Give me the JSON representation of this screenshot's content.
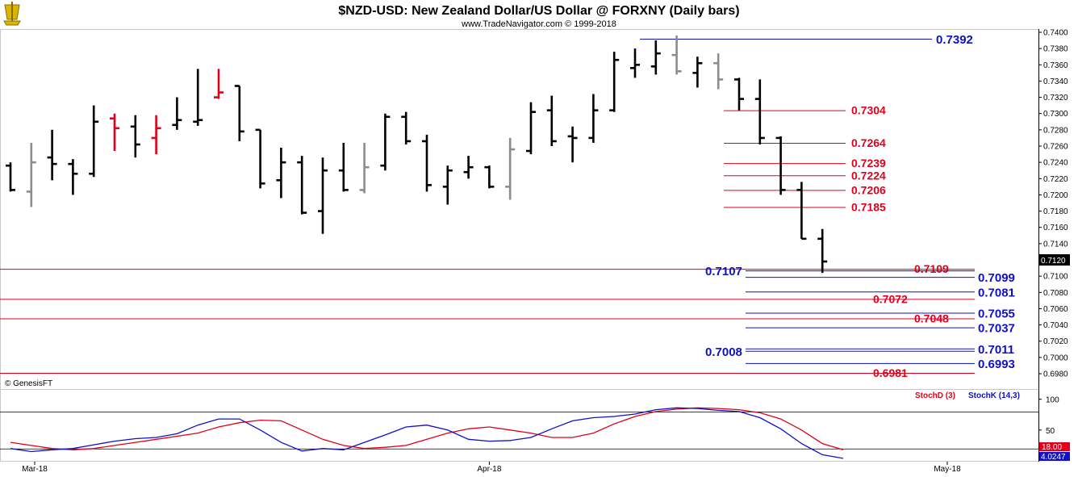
{
  "header": {
    "title": "$NZD-USD:  New Zealand Dollar/US Dollar @ FORXNY  (Daily bars)",
    "subtitle": "www.TradeNavigator.com © 1999-2018",
    "logo": "trade-navigator-ship-logo"
  },
  "colors": {
    "red": "#e0001b",
    "blue": "#1010c8",
    "gray": "#8c8c8c",
    "black": "#000000"
  },
  "chart_data": [
    {
      "type": "ohlc",
      "ylim": [
        0.6965,
        0.7405
      ],
      "y_ticks": [
        "0.7400",
        "0.7380",
        "0.7360",
        "0.7340",
        "0.7320",
        "0.7300",
        "0.7280",
        "0.7260",
        "0.7240",
        "0.7220",
        "0.7200",
        "0.7180",
        "0.7160",
        "0.7140",
        "0.7120",
        "0.7100",
        "0.7080",
        "0.7060",
        "0.7040",
        "0.7020",
        "0.7000",
        "0.6980"
      ],
      "last_price": "0.7120",
      "x_labels": [
        {
          "label": "Mar-18",
          "index": 0
        },
        {
          "label": "Apr-18",
          "index": 23
        },
        {
          "label": "May-18",
          "index": 45
        }
      ],
      "credit": "© GenesisFT",
      "bars": [
        {
          "o": 0.7236,
          "h": 0.724,
          "l": 0.7204,
          "c": 0.7206,
          "color": "black"
        },
        {
          "o": 0.7204,
          "h": 0.7264,
          "l": 0.7185,
          "c": 0.724,
          "color": "gray"
        },
        {
          "o": 0.7246,
          "h": 0.728,
          "l": 0.7218,
          "c": 0.7238,
          "color": "black"
        },
        {
          "o": 0.7238,
          "h": 0.7244,
          "l": 0.72,
          "c": 0.7226,
          "color": "black"
        },
        {
          "o": 0.7226,
          "h": 0.731,
          "l": 0.7222,
          "c": 0.729,
          "color": "black"
        },
        {
          "o": 0.7294,
          "h": 0.73,
          "l": 0.7254,
          "c": 0.7282,
          "color": "red"
        },
        {
          "o": 0.7284,
          "h": 0.7298,
          "l": 0.7246,
          "c": 0.7262,
          "color": "black"
        },
        {
          "o": 0.727,
          "h": 0.7298,
          "l": 0.725,
          "c": 0.7282,
          "color": "red"
        },
        {
          "o": 0.7286,
          "h": 0.732,
          "l": 0.728,
          "c": 0.7292,
          "color": "black"
        },
        {
          "o": 0.729,
          "h": 0.7355,
          "l": 0.7285,
          "c": 0.7292,
          "color": "black"
        },
        {
          "o": 0.732,
          "h": 0.7355,
          "l": 0.7318,
          "c": 0.7326,
          "color": "red"
        },
        {
          "o": 0.7334,
          "h": 0.7334,
          "l": 0.7266,
          "c": 0.7278,
          "color": "black"
        },
        {
          "o": 0.728,
          "h": 0.728,
          "l": 0.7208,
          "c": 0.7214,
          "color": "black"
        },
        {
          "o": 0.7218,
          "h": 0.7258,
          "l": 0.7196,
          "c": 0.724,
          "color": "black"
        },
        {
          "o": 0.724,
          "h": 0.7248,
          "l": 0.7176,
          "c": 0.7178,
          "color": "black"
        },
        {
          "o": 0.718,
          "h": 0.7246,
          "l": 0.7152,
          "c": 0.723,
          "color": "black"
        },
        {
          "o": 0.723,
          "h": 0.7264,
          "l": 0.7204,
          "c": 0.7206,
          "color": "black"
        },
        {
          "o": 0.7206,
          "h": 0.7264,
          "l": 0.7202,
          "c": 0.7234,
          "color": "gray"
        },
        {
          "o": 0.7236,
          "h": 0.73,
          "l": 0.723,
          "c": 0.7296,
          "color": "black"
        },
        {
          "o": 0.7296,
          "h": 0.7302,
          "l": 0.7262,
          "c": 0.7266,
          "color": "black"
        },
        {
          "o": 0.7266,
          "h": 0.7274,
          "l": 0.7204,
          "c": 0.7212,
          "color": "black"
        },
        {
          "o": 0.721,
          "h": 0.7236,
          "l": 0.7188,
          "c": 0.723,
          "color": "black"
        },
        {
          "o": 0.7228,
          "h": 0.7248,
          "l": 0.722,
          "c": 0.7234,
          "color": "black"
        },
        {
          "o": 0.7234,
          "h": 0.7236,
          "l": 0.7208,
          "c": 0.721,
          "color": "black"
        },
        {
          "o": 0.721,
          "h": 0.727,
          "l": 0.7194,
          "c": 0.7256,
          "color": "gray"
        },
        {
          "o": 0.7254,
          "h": 0.7314,
          "l": 0.725,
          "c": 0.7302,
          "color": "black"
        },
        {
          "o": 0.7304,
          "h": 0.7322,
          "l": 0.726,
          "c": 0.7266,
          "color": "black"
        },
        {
          "o": 0.7272,
          "h": 0.7284,
          "l": 0.724,
          "c": 0.727,
          "color": "black"
        },
        {
          "o": 0.727,
          "h": 0.7324,
          "l": 0.7264,
          "c": 0.7304,
          "color": "black"
        },
        {
          "o": 0.7304,
          "h": 0.7376,
          "l": 0.7302,
          "c": 0.7366,
          "color": "black"
        },
        {
          "o": 0.7356,
          "h": 0.738,
          "l": 0.7344,
          "c": 0.736,
          "color": "black"
        },
        {
          "o": 0.7358,
          "h": 0.739,
          "l": 0.7348,
          "c": 0.7374,
          "color": "black"
        },
        {
          "o": 0.7372,
          "h": 0.7396,
          "l": 0.7348,
          "c": 0.7352,
          "color": "gray"
        },
        {
          "o": 0.735,
          "h": 0.737,
          "l": 0.7332,
          "c": 0.7362,
          "color": "black"
        },
        {
          "o": 0.7362,
          "h": 0.7374,
          "l": 0.733,
          "c": 0.7342,
          "color": "gray"
        },
        {
          "o": 0.7342,
          "h": 0.7344,
          "l": 0.7304,
          "c": 0.7318,
          "color": "black"
        },
        {
          "o": 0.7318,
          "h": 0.7342,
          "l": 0.7262,
          "c": 0.727,
          "color": "black"
        },
        {
          "o": 0.727,
          "h": 0.7272,
          "l": 0.72,
          "c": 0.7206,
          "color": "black"
        },
        {
          "o": 0.7206,
          "h": 0.7216,
          "l": 0.7146,
          "c": 0.7146,
          "color": "black"
        },
        {
          "o": 0.7146,
          "h": 0.7158,
          "l": 0.7104,
          "c": 0.7118,
          "color": "black"
        }
      ],
      "red_levels": [
        {
          "value": 0.7304,
          "label": "0.7304",
          "style": "short"
        },
        {
          "value": 0.7264,
          "label": "0.7264",
          "style": "short"
        },
        {
          "value": 0.7239,
          "label": "0.7239",
          "style": "short"
        },
        {
          "value": 0.7224,
          "label": "0.7224",
          "style": "short"
        },
        {
          "value": 0.7206,
          "label": "0.7206",
          "style": "short"
        },
        {
          "value": 0.7185,
          "label": "0.7185",
          "style": "short"
        },
        {
          "value": 0.7109,
          "label": "0.7109",
          "style": "long"
        },
        {
          "value": 0.7072,
          "label": "0.7072",
          "style": "long"
        },
        {
          "value": 0.7048,
          "label": "0.7048",
          "style": "long"
        },
        {
          "value": 0.6981,
          "label": "0.6981",
          "style": "long"
        }
      ],
      "blue_levels": [
        {
          "value": 0.7392,
          "label": "0.7392",
          "style": "top"
        },
        {
          "value": 0.7107,
          "label": "0.7107",
          "style": "left"
        },
        {
          "value": 0.7099,
          "label": "0.7099",
          "style": "right"
        },
        {
          "value": 0.7081,
          "label": "0.7081",
          "style": "right"
        },
        {
          "value": 0.7055,
          "label": "0.7055",
          "style": "right"
        },
        {
          "value": 0.7037,
          "label": "0.7037",
          "style": "right"
        },
        {
          "value": 0.7008,
          "label": "0.7008",
          "style": "left"
        },
        {
          "value": 0.7011,
          "label": "0.7011",
          "style": "right"
        },
        {
          "value": 0.6993,
          "label": "0.6993",
          "style": "right"
        }
      ]
    },
    {
      "type": "line",
      "title": "",
      "legend": [
        "StochD (3)",
        "StochK (14,3)"
      ],
      "ylim": [
        0,
        110
      ],
      "y_ticks": [
        "100",
        "50"
      ],
      "ref_levels": [
        80,
        20
      ],
      "last_d": "18.00",
      "last_k": "4.0247",
      "series": [
        {
          "name": "StochD (3)",
          "color": "#e0001b",
          "values": [
            30,
            25,
            20,
            18,
            20,
            25,
            30,
            35,
            40,
            45,
            55,
            62,
            66,
            65,
            50,
            35,
            25,
            20,
            22,
            25,
            35,
            45,
            52,
            55,
            50,
            45,
            38,
            38,
            45,
            60,
            72,
            80,
            84,
            86,
            85,
            83,
            78,
            68,
            50,
            28,
            18
          ]
        },
        {
          "name": "StochK (14,3)",
          "color": "#1010c8",
          "values": [
            20,
            15,
            18,
            20,
            26,
            32,
            36,
            38,
            44,
            58,
            68,
            68,
            50,
            30,
            16,
            20,
            18,
            30,
            42,
            55,
            58,
            50,
            35,
            32,
            33,
            38,
            52,
            65,
            70,
            72,
            76,
            83,
            86,
            85,
            82,
            80,
            70,
            52,
            28,
            10,
            4
          ]
        }
      ]
    }
  ]
}
